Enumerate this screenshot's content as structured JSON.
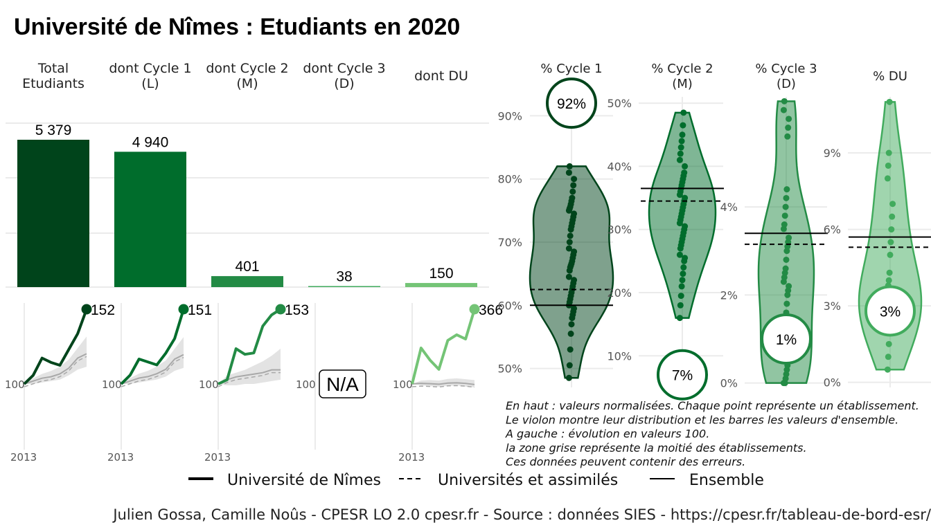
{
  "title": "Université de Nîmes  :  Etudiants en 2020",
  "colors": {
    "c_total": "#00441b",
    "c_c1": "#006d2c",
    "c_c2": "#238b45",
    "c_c3": "#41ab5d",
    "c_du": "#74c476",
    "grid": "#ebebeb"
  },
  "chart_data": [
    {
      "type": "bar",
      "categories": [
        "Total\nEtudiants",
        "dont Cycle 1\n(L)",
        "dont Cycle 2\n(M)",
        "dont Cycle 3\n(D)",
        "dont DU"
      ],
      "values": [
        5379,
        4940,
        401,
        38,
        150
      ],
      "labels": [
        "5 379",
        "4 940",
        "401",
        "38",
        "150"
      ]
    },
    {
      "type": "line",
      "title": "Évolution en valeurs 100",
      "x_start_label": "2013",
      "base_label": "100",
      "na_label": "N/A",
      "panels": [
        {
          "name": "Total",
          "end_label": "152",
          "values": [
            100,
            106,
            118,
            115,
            113,
            124,
            135,
            152
          ],
          "ref": [
            100,
            102,
            104,
            105,
            107,
            111,
            118,
            121
          ],
          "band_lo": [
            100,
            100,
            101,
            102,
            103,
            106,
            110,
            112
          ],
          "band_hi": [
            100,
            104,
            107,
            109,
            112,
            117,
            125,
            133
          ]
        },
        {
          "name": "Cycle 1",
          "end_label": "151",
          "values": [
            100,
            106,
            117,
            115,
            113,
            121,
            131,
            151
          ],
          "ref": [
            100,
            102,
            104,
            105,
            107,
            110,
            117,
            120
          ],
          "band_lo": [
            100,
            100,
            101,
            102,
            103,
            105,
            109,
            111
          ],
          "band_hi": [
            100,
            104,
            107,
            109,
            112,
            116,
            124,
            132
          ]
        },
        {
          "name": "Cycle 2",
          "end_label": "153",
          "values": [
            100,
            103,
            125,
            121,
            122,
            141,
            149,
            153
          ],
          "ref": [
            100,
            103,
            105,
            106,
            107,
            108,
            110,
            110
          ],
          "band_lo": [
            100,
            99,
            99,
            100,
            100,
            101,
            102,
            103
          ],
          "band_hi": [
            100,
            106,
            108,
            110,
            113,
            116,
            120,
            125
          ]
        },
        {
          "name": "Cycle 3",
          "values": []
        },
        {
          "name": "DU",
          "end_label": "366",
          "values": [
            100,
            228,
            185,
            152,
            255,
            275,
            260,
            366
          ],
          "ref": [
            100,
            102,
            101,
            99,
            103,
            104,
            102,
            98
          ],
          "band_lo": [
            100,
            95,
            92,
            90,
            93,
            95,
            90,
            88
          ],
          "band_hi": [
            100,
            112,
            114,
            112,
            118,
            120,
            117,
            114
          ]
        }
      ]
    },
    {
      "type": "scatter",
      "subtype": "violin",
      "panels": [
        {
          "title": "% Cycle 1\n(L)",
          "ticks": [
            50,
            60,
            70,
            80,
            90
          ],
          "tick_labels": [
            "50%",
            "60%",
            "70%",
            "80%",
            "90%"
          ],
          "ylim": [
            47,
            93
          ],
          "value": 92,
          "value_label": "92%",
          "univ_line": 62.5,
          "ensemble_line": 60,
          "points": [
            48.5,
            50.5,
            53,
            55.5,
            57,
            58,
            58.5,
            59,
            59.5,
            60,
            60.5,
            61,
            61.5,
            62,
            62.5,
            63,
            63.5,
            64,
            64.5,
            65.5,
            66,
            66.3,
            66.6,
            67,
            67.5,
            68,
            68.5,
            69,
            70,
            71,
            72,
            72.5,
            73,
            73.5,
            74,
            74.5,
            75,
            75.3,
            75.6,
            76,
            76.5,
            77,
            78,
            79,
            80,
            81,
            82
          ]
        },
        {
          "title": "% Cycle 2\n(M)",
          "ticks": [
            10,
            20,
            30,
            40,
            50
          ],
          "tick_labels": [
            "10%",
            "20%",
            "30%",
            "40%",
            "50%"
          ],
          "ylim": [
            5,
            51
          ],
          "value": 7,
          "value_label": "7%",
          "univ_line": 34.5,
          "ensemble_line": 36.5,
          "points": [
            16,
            18,
            19.5,
            21,
            22,
            23,
            24,
            25,
            25.5,
            26,
            27,
            27.5,
            28,
            28.5,
            29,
            29.5,
            30,
            30.5,
            31,
            31.5,
            32,
            32.5,
            33,
            33.5,
            34,
            34.5,
            35,
            35.5,
            36,
            36.5,
            37,
            37.5,
            38,
            38.5,
            39,
            40,
            41,
            42,
            43,
            44,
            45,
            46.5,
            48.5
          ]
        },
        {
          "title": "% Cycle 3\n(D)",
          "ticks": [
            0,
            2,
            4
          ],
          "tick_labels": [
            "0%",
            "2%",
            "4%"
          ],
          "ylim": [
            -0.1,
            6.5
          ],
          "value": 1.0,
          "value_label": "1%",
          "univ_line": 3.15,
          "ensemble_line": 3.4,
          "points": [
            0,
            0,
            0,
            0.1,
            0.2,
            0.3,
            0.4,
            0.5,
            0.6,
            0.8,
            1.0,
            1.2,
            1.4,
            1.6,
            1.8,
            2.0,
            2.1,
            2.2,
            2.3,
            2.4,
            2.5,
            2.6,
            2.8,
            3.0,
            3.1,
            3.2,
            3.3,
            3.5,
            3.6,
            3.8,
            4.0,
            4.2,
            4.4,
            5.6,
            5.8,
            6.0,
            6.2,
            6.4
          ]
        },
        {
          "title": "% DU",
          "ticks": [
            0,
            3,
            6,
            9
          ],
          "tick_labels": [
            "0%",
            "3%",
            "6%",
            "9%"
          ],
          "ylim": [
            -0.2,
            11.2
          ],
          "value": 2.8,
          "value_label": "3%",
          "univ_line": 5.3,
          "ensemble_line": 5.7,
          "points": [
            0.5,
            1,
            1.5,
            2,
            2.3,
            2.6,
            2.8,
            3,
            3.3,
            3.5,
            3.8,
            4,
            4.3,
            5,
            5.5,
            6,
            6.5,
            7,
            8,
            8.5,
            9,
            11
          ]
        }
      ]
    }
  ],
  "notes": [
    "En haut : valeurs normalisées. Chaque point représente un établissement.",
    "Le violon montre leur distribution et les barres les valeurs d'ensemble.",
    "A gauche : évolution en valeurs 100.",
    "la zone grise représente la moitié des établissements.",
    "Ces données peuvent contenir des erreurs."
  ],
  "legend": [
    {
      "label": "Université de Nîmes",
      "style": "solid-thick"
    },
    {
      "label": "Universités et assimilés",
      "style": "dashed"
    },
    {
      "label": "Ensemble",
      "style": "solid-thin"
    }
  ],
  "caption": "Julien Gossa, Camille Noûs - CPESR LO 2.0 cpesr.fr - Source : données SIES - https://cpesr.fr/tableau-de-bord-esr/"
}
